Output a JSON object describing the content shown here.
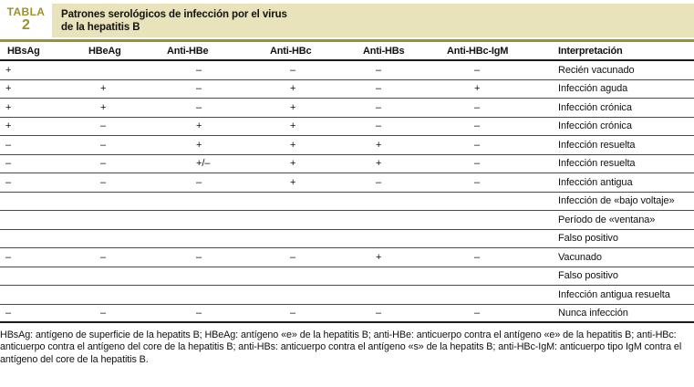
{
  "header": {
    "label_word": "TABLA",
    "label_number": "2",
    "title_line1": "Patrones serológicos de infección por el virus",
    "title_line2": "de la hepatitis B"
  },
  "colors": {
    "olive": "#9A922C",
    "beige": "#E8E3BA"
  },
  "table": {
    "columns": [
      "HBsAg",
      "HBeAg",
      "Anti-HBe",
      "Anti-HBc",
      "Anti-HBs",
      "Anti-HBc-IgM",
      "Interpretación"
    ],
    "rows": [
      [
        "+",
        "",
        "–",
        "–",
        "–",
        "–",
        "Recién vacunado"
      ],
      [
        "+",
        "+",
        "–",
        "+",
        "–",
        "+",
        "Infección aguda"
      ],
      [
        "+",
        "+",
        "–",
        "+",
        "–",
        "–",
        "Infección crónica"
      ],
      [
        "+",
        "–",
        "+",
        "+",
        "–",
        "–",
        "Infección crónica"
      ],
      [
        "–",
        "–",
        "+",
        "+",
        "+",
        "–",
        "Infección resuelta"
      ],
      [
        "–",
        "–",
        "+/–",
        "+",
        "+",
        "–",
        "Infección resuelta"
      ],
      [
        "–",
        "–",
        "–",
        "+",
        "–",
        "–",
        "Infección antigua"
      ],
      [
        "",
        "",
        "",
        "",
        "",
        "",
        "Infección de «bajo voltaje»"
      ],
      [
        "",
        "",
        "",
        "",
        "",
        "",
        "Período de «ventana»"
      ],
      [
        "",
        "",
        "",
        "",
        "",
        "",
        "Falso positivo"
      ],
      [
        "–",
        "–",
        "–",
        "–",
        "+",
        "–",
        "Vacunado"
      ],
      [
        "",
        "",
        "",
        "",
        "",
        "",
        "Falso positivo"
      ],
      [
        "",
        "",
        "",
        "",
        "",
        "",
        "Infección antigua resuelta"
      ],
      [
        "–",
        "–",
        "–",
        "–",
        "–",
        "–",
        "Nunca infección"
      ]
    ]
  },
  "footnote": {
    "line1": "HBsAg: antígeno de superficie de la hepatits B; HBeAg: antígeno «e» de la hepatitis B; anti-HBe: anticuerpo contra el antígeno «e» de la hepatitis B; anti-HBc:",
    "line2": "anticuerpo contra el antígeno del core de la hepatitis B; anti-HBs: anticuerpo contra el antígeno «s» de la hepatits B; anti-HBc-IgM: anticuerpo tipo IgM contra el",
    "line3": "antígeno del core de la hepatitis B."
  }
}
